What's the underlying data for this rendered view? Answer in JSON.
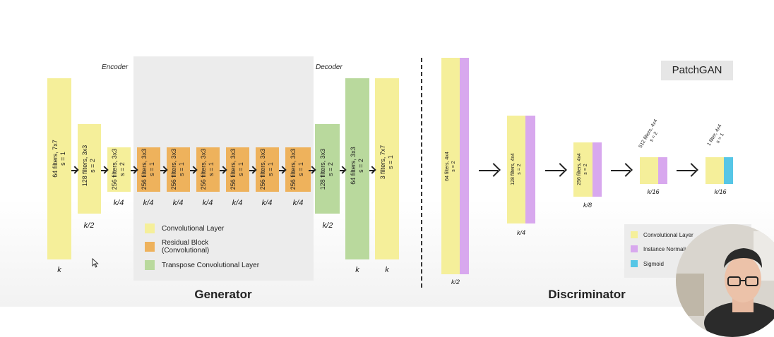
{
  "generator": {
    "title": "Generator",
    "encoder_label": "Encoder",
    "decoder_label": "Decoder",
    "blocks": [
      {
        "label_line1": "64 filters, 7x7",
        "label_line2": "s = 1",
        "dim": "k",
        "color": "#f5ef9a"
      },
      {
        "label_line1": "128 filters, 3x3",
        "label_line2": "s = 2",
        "dim": "k/2",
        "color": "#f5ef9a"
      },
      {
        "label_line1": "256 filters, 3x3",
        "label_line2": "s = 2",
        "dim": "k/4",
        "color": "#f5ef9a"
      },
      {
        "label_line1": "256 filters, 3x3",
        "label_line2": "s = 1",
        "dim": "k/4",
        "color": "#eeb25c"
      },
      {
        "label_line1": "256 filters, 3x3",
        "label_line2": "s = 1",
        "dim": "k/4",
        "color": "#eeb25c"
      },
      {
        "label_line1": "256 filters, 3x3",
        "label_line2": "s = 1",
        "dim": "k/4",
        "color": "#eeb25c"
      },
      {
        "label_line1": "256 filters, 3x3",
        "label_line2": "s = 1",
        "dim": "k/4",
        "color": "#eeb25c"
      },
      {
        "label_line1": "256 filters, 3x3",
        "label_line2": "s = 1",
        "dim": "k/4",
        "color": "#eeb25c"
      },
      {
        "label_line1": "256 filters, 3x3",
        "label_line2": "s = 1",
        "dim": "k/4",
        "color": "#eeb25c"
      },
      {
        "label_line1": "128 filters, 3x3",
        "label_line2": "s = 2",
        "dim": "k/2",
        "color": "#b9d99d"
      },
      {
        "label_line1": "64 filters, 3x3",
        "label_line2": "s = 2",
        "dim": "k",
        "color": "#b9d99d"
      },
      {
        "label_line1": "3 filters, 7x7",
        "label_line2": "s = 1",
        "dim": "k",
        "color": "#f5ef9a"
      }
    ],
    "legend": [
      {
        "label": "Convolutional Layer",
        "color": "#f5ef9a"
      },
      {
        "label": "Residual Block\n(Convolutional)",
        "color": "#eeb25c"
      },
      {
        "label": "Transpose Convolutional Layer",
        "color": "#b9d99d"
      }
    ]
  },
  "discriminator": {
    "title": "Discriminator",
    "badge": "PatchGAN",
    "blocks": [
      {
        "label_line1": "64 filters, 4x4",
        "label_line2": "s = 2",
        "dim": "k/2",
        "extra": "#d8a8ee"
      },
      {
        "label_line1": "128 filters, 4x4",
        "label_line2": "s = 2",
        "dim": "k/4",
        "extra": "#d8a8ee"
      },
      {
        "label_line1": "256 filters, 4x4",
        "label_line2": "s = 2",
        "dim": "k/8",
        "extra": "#d8a8ee"
      },
      {
        "label_line1": "512 filters, 4x4",
        "label_line2": "s = 2",
        "dim": "k/16",
        "extra": "#d8a8ee"
      },
      {
        "label_line1": "1 filter, 4x4",
        "label_line2": "s = 1",
        "dim": "k/16",
        "extra": "#56c6e6"
      }
    ],
    "legend": [
      {
        "label": "Convolutional Layer",
        "color": "#f5ef9a"
      },
      {
        "label": "Instance Normalization",
        "color": "#d8a8ee"
      },
      {
        "label": "Sigmoid",
        "color": "#56c6e6"
      }
    ]
  }
}
